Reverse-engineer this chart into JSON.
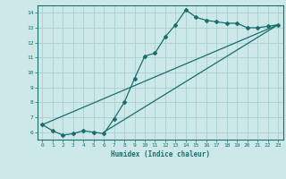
{
  "xlabel": "Humidex (Indice chaleur)",
  "bg_color": "#cce8e8",
  "line_color": "#1a6e6e",
  "grid_color": "#aacfcf",
  "xlim": [
    -0.5,
    23.5
  ],
  "ylim": [
    5.5,
    14.5
  ],
  "xticks": [
    0,
    1,
    2,
    3,
    4,
    5,
    6,
    7,
    8,
    9,
    10,
    11,
    12,
    13,
    14,
    15,
    16,
    17,
    18,
    19,
    20,
    21,
    22,
    23
  ],
  "yticks": [
    6,
    7,
    8,
    9,
    10,
    11,
    12,
    13,
    14
  ],
  "line1_x": [
    0,
    1,
    2,
    3,
    4,
    5,
    6,
    7,
    8,
    9,
    10,
    11,
    12,
    13,
    14,
    15,
    16,
    17,
    18,
    19,
    20,
    21,
    22,
    23
  ],
  "line1_y": [
    6.5,
    6.1,
    5.8,
    5.9,
    6.1,
    6.0,
    5.9,
    6.9,
    8.0,
    9.6,
    11.1,
    11.3,
    12.4,
    13.2,
    14.2,
    13.7,
    13.5,
    13.4,
    13.3,
    13.3,
    13.0,
    13.0,
    13.1,
    13.2
  ],
  "line2_x": [
    0,
    23
  ],
  "line2_y": [
    6.5,
    13.2
  ],
  "line3_x": [
    6,
    23
  ],
  "line3_y": [
    6.0,
    13.2
  ]
}
